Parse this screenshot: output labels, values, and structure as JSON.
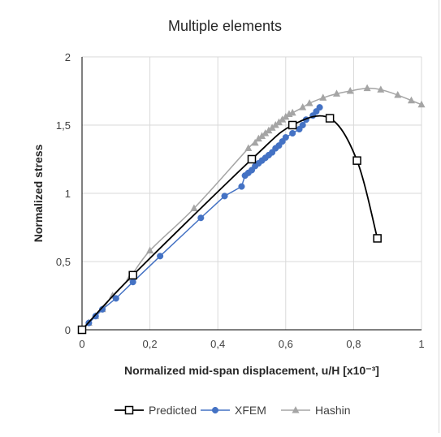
{
  "chart_data": {
    "type": "line",
    "title": "Multiple elements",
    "xlabel": "Normalized mid-span displacement, u/H [x10⁻³]",
    "ylabel": "Normalized stress",
    "xlim": [
      0,
      1
    ],
    "ylim": [
      0,
      2
    ],
    "xticks": [
      0,
      0.2,
      0.4,
      0.6,
      0.8,
      1
    ],
    "xtick_labels": [
      "0",
      "0,2",
      "0,4",
      "0,6",
      "0,8",
      "1"
    ],
    "yticks": [
      0,
      0.5,
      1,
      1.5,
      2
    ],
    "ytick_labels": [
      "0",
      "0,5",
      "1",
      "1,5",
      "2"
    ],
    "grid": true,
    "legend_position": "bottom",
    "series": [
      {
        "name": "Predicted",
        "color": "#000000",
        "marker": "square-open",
        "smooth": true,
        "points": [
          [
            0,
            0
          ],
          [
            0.15,
            0.4
          ],
          [
            0.5,
            1.25
          ],
          [
            0.62,
            1.5
          ],
          [
            0.73,
            1.55
          ],
          [
            0.81,
            1.24
          ],
          [
            0.87,
            0.67
          ]
        ]
      },
      {
        "name": "XFEM",
        "color": "#4472c4",
        "marker": "circle",
        "smooth": false,
        "points": [
          [
            0,
            0
          ],
          [
            0.02,
            0.05
          ],
          [
            0.04,
            0.1
          ],
          [
            0.06,
            0.15
          ],
          [
            0.1,
            0.23
          ],
          [
            0.15,
            0.35
          ],
          [
            0.23,
            0.54
          ],
          [
            0.35,
            0.82
          ],
          [
            0.42,
            0.98
          ],
          [
            0.47,
            1.05
          ],
          [
            0.48,
            1.13
          ],
          [
            0.49,
            1.15
          ],
          [
            0.5,
            1.17
          ],
          [
            0.51,
            1.2
          ],
          [
            0.52,
            1.22
          ],
          [
            0.53,
            1.24
          ],
          [
            0.54,
            1.26
          ],
          [
            0.55,
            1.28
          ],
          [
            0.56,
            1.3
          ],
          [
            0.57,
            1.33
          ],
          [
            0.58,
            1.35
          ],
          [
            0.59,
            1.38
          ],
          [
            0.6,
            1.41
          ],
          [
            0.62,
            1.44
          ],
          [
            0.64,
            1.47
          ],
          [
            0.65,
            1.5
          ],
          [
            0.66,
            1.54
          ],
          [
            0.68,
            1.57
          ],
          [
            0.69,
            1.6
          ],
          [
            0.7,
            1.63
          ]
        ]
      },
      {
        "name": "Hashin",
        "color": "#a5a5a5",
        "marker": "triangle",
        "smooth": true,
        "points": [
          [
            0,
            0
          ],
          [
            0.02,
            0.05
          ],
          [
            0.04,
            0.1
          ],
          [
            0.06,
            0.15
          ],
          [
            0.09,
            0.25
          ],
          [
            0.14,
            0.38
          ],
          [
            0.2,
            0.58
          ],
          [
            0.33,
            0.89
          ],
          [
            0.49,
            1.33
          ],
          [
            0.51,
            1.37
          ],
          [
            0.52,
            1.4
          ],
          [
            0.53,
            1.42
          ],
          [
            0.54,
            1.44
          ],
          [
            0.55,
            1.46
          ],
          [
            0.56,
            1.48
          ],
          [
            0.57,
            1.5
          ],
          [
            0.58,
            1.52
          ],
          [
            0.59,
            1.54
          ],
          [
            0.6,
            1.56
          ],
          [
            0.61,
            1.58
          ],
          [
            0.62,
            1.59
          ],
          [
            0.65,
            1.63
          ],
          [
            0.67,
            1.66
          ],
          [
            0.71,
            1.7
          ],
          [
            0.75,
            1.73
          ],
          [
            0.79,
            1.75
          ],
          [
            0.84,
            1.77
          ],
          [
            0.88,
            1.76
          ],
          [
            0.93,
            1.72
          ],
          [
            0.97,
            1.68
          ],
          [
            1.0,
            1.65
          ]
        ]
      }
    ]
  }
}
